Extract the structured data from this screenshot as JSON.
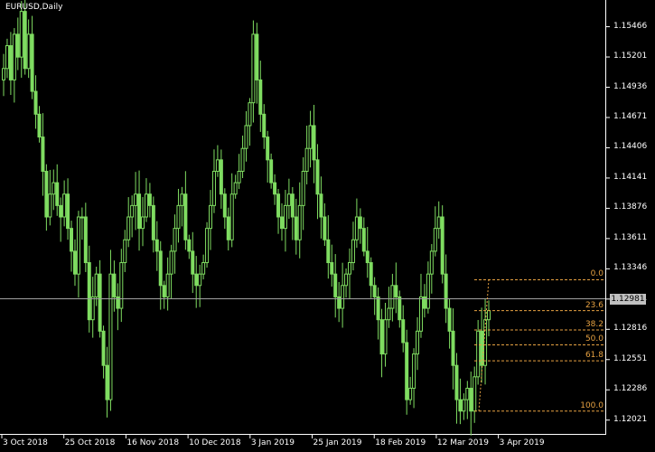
{
  "window": {
    "title": "EURUSD,Daily"
  },
  "colors": {
    "background": "#000000",
    "candles": "#7fdc61",
    "axis": "#ffffff",
    "bid_line": "#a0a0a0",
    "fibonacci": "#e6a142"
  },
  "price_axis": {
    "ticks": [
      "1.15466",
      "1.15201",
      "1.14936",
      "1.14671",
      "1.14406",
      "1.14141",
      "1.13876",
      "1.13611",
      "1.13346",
      "1.13081",
      "1.12816",
      "1.12551",
      "1.12286",
      "1.12021"
    ],
    "current_price": "1.12981"
  },
  "time_axis": {
    "ticks": [
      "3 Oct 2018",
      "25 Oct 2018",
      "16 Nov 2018",
      "10 Dec 2018",
      "3 Jan 2019",
      "25 Jan 2019",
      "18 Feb 2019",
      "12 Mar 2019",
      "3 Apr 2019"
    ]
  },
  "fibonacci": {
    "levels": [
      "0.0",
      "23.6",
      "38.2",
      "50.0",
      "61.8",
      "100.0"
    ],
    "values": [
      1.1325,
      1.1298,
      1.1281,
      1.1268,
      1.1254,
      1.121
    ]
  },
  "chart_data": {
    "type": "candlestick",
    "title": "EURUSD,Daily",
    "ylim": [
      1.119,
      1.157
    ],
    "x_start": "3 Oct 2018",
    "x_end": "12 Apr 2019",
    "close": [
      1.151,
      1.153,
      1.15,
      1.154,
      1.152,
      1.156,
      1.151,
      1.154,
      1.149,
      1.147,
      1.145,
      1.142,
      1.138,
      1.14,
      1.141,
      1.139,
      1.138,
      1.14,
      1.137,
      1.135,
      1.133,
      1.138,
      1.138,
      1.134,
      1.129,
      1.131,
      1.133,
      1.128,
      1.125,
      1.122,
      1.133,
      1.131,
      1.13,
      1.134,
      1.136,
      1.138,
      1.139,
      1.14,
      1.137,
      1.138,
      1.14,
      1.139,
      1.136,
      1.135,
      1.132,
      1.131,
      1.133,
      1.135,
      1.137,
      1.139,
      1.14,
      1.136,
      1.135,
      1.133,
      1.132,
      1.133,
      1.134,
      1.137,
      1.139,
      1.142,
      1.143,
      1.14,
      1.138,
      1.136,
      1.14,
      1.141,
      1.142,
      1.144,
      1.146,
      1.148,
      1.154,
      1.15,
      1.147,
      1.145,
      1.143,
      1.141,
      1.14,
      1.138,
      1.137,
      1.139,
      1.14,
      1.138,
      1.136,
      1.139,
      1.142,
      1.144,
      1.146,
      1.143,
      1.14,
      1.138,
      1.136,
      1.134,
      1.133,
      1.131,
      1.13,
      1.132,
      1.133,
      1.134,
      1.136,
      1.138,
      1.137,
      1.135,
      1.134,
      1.132,
      1.131,
      1.129,
      1.126,
      1.129,
      1.13,
      1.132,
      1.131,
      1.129,
      1.127,
      1.122,
      1.123,
      1.126,
      1.128,
      1.131,
      1.13,
      1.133,
      1.135,
      1.137,
      1.138,
      1.133,
      1.13,
      1.128,
      1.125,
      1.122,
      1.121,
      1.122,
      1.123,
      1.121,
      1.124,
      1.128,
      1.125,
      1.129,
      1.1298
    ]
  }
}
